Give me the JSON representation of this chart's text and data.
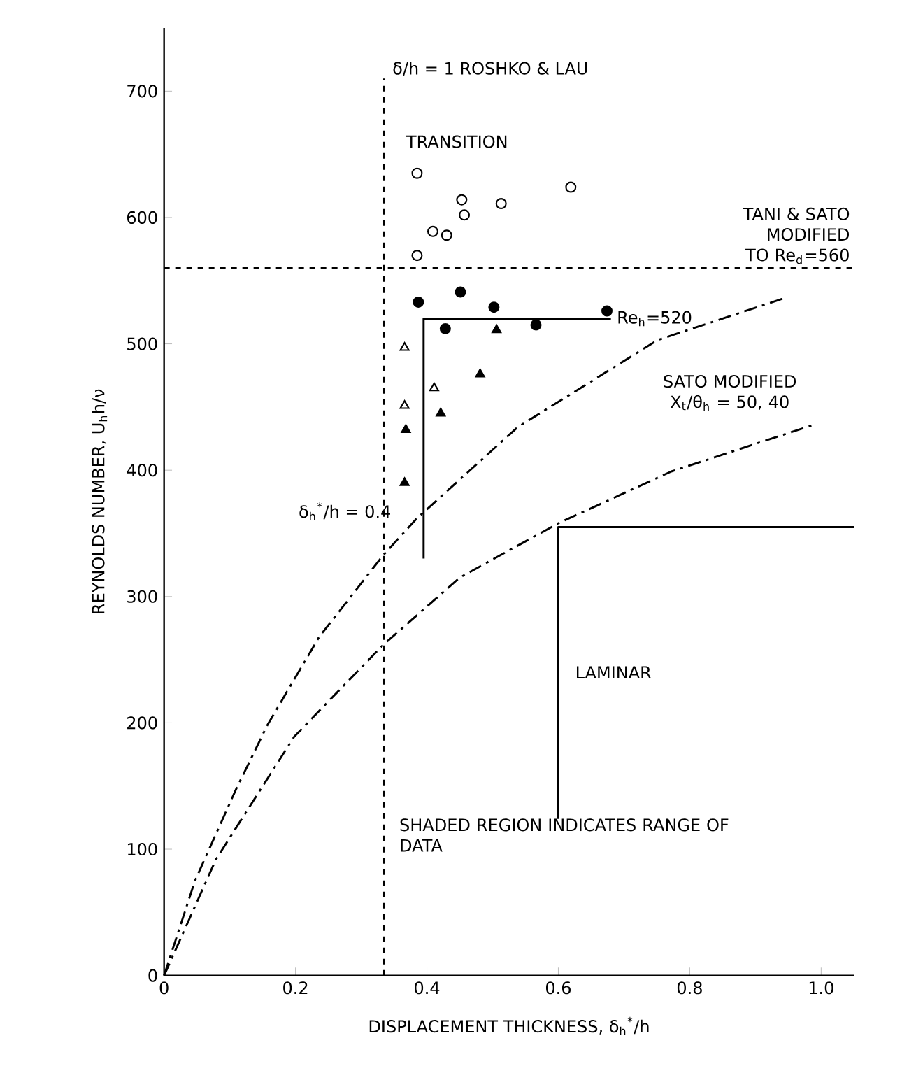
{
  "chart_data": {
    "type": "scatter",
    "xlabel": "DISPLACEMENT THICKNESS, δ$_{h}$$^{*}$/h",
    "ylabel": "REYNOLDS NUMBER, U$_{h}$h/ν",
    "xlim": [
      0,
      1.05
    ],
    "ylim": [
      0,
      750
    ],
    "xticks": [
      {
        "value": 0,
        "label": "0"
      },
      {
        "value": 0.2,
        "label": "0.2"
      },
      {
        "value": 0.4,
        "label": "0.4"
      },
      {
        "value": 0.6,
        "label": "0.6"
      },
      {
        "value": 0.8,
        "label": "0.8"
      },
      {
        "value": 1.0,
        "label": "1.0"
      }
    ],
    "yticks": [
      0,
      100,
      200,
      300,
      400,
      500,
      600,
      700
    ],
    "series": [
      {
        "marker": "circle",
        "color": "#ffffff",
        "x": [
          0.385,
          0.453,
          0.457,
          0.513,
          0.409,
          0.43,
          0.385,
          0.619
        ],
        "values": [
          635,
          614,
          602,
          611,
          589,
          586,
          570,
          624
        ]
      },
      {
        "marker": "circle",
        "color": "#000000",
        "x": [
          0.451,
          0.387,
          0.428,
          0.502,
          0.566,
          0.674
        ],
        "values": [
          541,
          533,
          512,
          529,
          515,
          526
        ]
      },
      {
        "marker": "triangle",
        "color": "#ffffff",
        "x": [
          0.366,
          0.411,
          0.366
        ],
        "values": [
          497,
          465,
          451
        ]
      },
      {
        "marker": "triangle",
        "color": "#000000",
        "x": [
          0.506,
          0.481,
          0.421,
          0.368,
          0.366
        ],
        "values": [
          511,
          476,
          445,
          432,
          390
        ]
      },
      {
        "type": "line",
        "line_style": "solid",
        "color": "#000000",
        "x": [
          0.395,
          0.395,
          0.68
        ],
        "values": [
          330,
          520,
          520
        ]
      },
      {
        "type": "line",
        "line_style": "dashdot",
        "color": "#000000",
        "x": [
          0,
          0.047,
          0.11,
          0.157,
          0.236,
          0.334,
          0.385,
          0.538,
          0.751,
          0.949
        ],
        "values": [
          0,
          75,
          148,
          198,
          268,
          333,
          362,
          434,
          503,
          537
        ]
      },
      {
        "type": "line",
        "line_style": "dashdot",
        "color": "#000000",
        "x": [
          0,
          0.079,
          0.198,
          0.332,
          0.45,
          0.6,
          0.772,
          0.989
        ],
        "values": [
          0,
          92,
          189,
          261,
          315,
          358,
          399,
          436
        ]
      },
      {
        "type": "line",
        "line_style": "solid",
        "color": "#000000",
        "x": [
          0.6,
          0.6,
          1.05
        ],
        "values": [
          124,
          355,
          355
        ]
      }
    ],
    "ref_lines": [
      {
        "axis": "x",
        "value": 0.335,
        "line_style": "dashed"
      },
      {
        "axis": "y",
        "value": 560,
        "label": "TANI & SATO MODIFIED TO Re$_{d}$=560",
        "line_style": "dashed"
      }
    ],
    "annotations": [
      "δ/h = 1   ROSHKO & LAU",
      "TRANSITION",
      {
        "text": "Re$_{h}$=520",
        "x": 0.68,
        "y": 520
      },
      "δ$_{h}$$^{*}$/h = 0.4",
      "SATO MODIFIED X$_{t}$/θ$_{h}$ = 50, 40",
      "LAMINAR",
      "SHADED REGION INDICATES RANGE OF DATA"
    ]
  }
}
